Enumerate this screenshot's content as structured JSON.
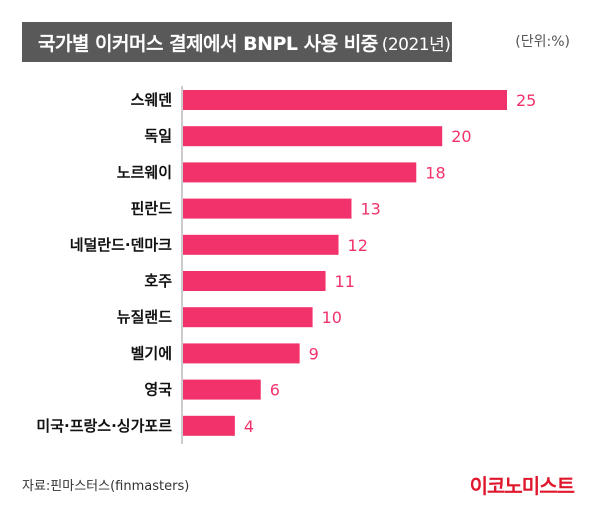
{
  "header": {
    "title": "국가별 이커머스 결제에서 BNPL 사용 비중",
    "title_year": "(2021년)",
    "unit": "(단위:%)"
  },
  "footer": {
    "source": "자료:핀마스터스(finmasters)",
    "logo": "이코노미스트"
  },
  "colors": {
    "bar": "#f2326b",
    "label": "#f2326b",
    "title_bg": "#595959"
  },
  "chart_data": {
    "type": "bar",
    "orientation": "horizontal",
    "title": "국가별 이커머스 결제에서 BNPL 사용 비중 (2021년)",
    "unit": "%",
    "categories": [
      "스웨덴",
      "독일",
      "노르웨이",
      "핀란드",
      "네덜란드·덴마크",
      "호주",
      "뉴질랜드",
      "벨기에",
      "영국",
      "미국·프랑스·싱가포르"
    ],
    "values": [
      25,
      20,
      18,
      13,
      12,
      11,
      10,
      9,
      6,
      4
    ],
    "xlim": [
      0,
      25
    ],
    "grid": false
  }
}
